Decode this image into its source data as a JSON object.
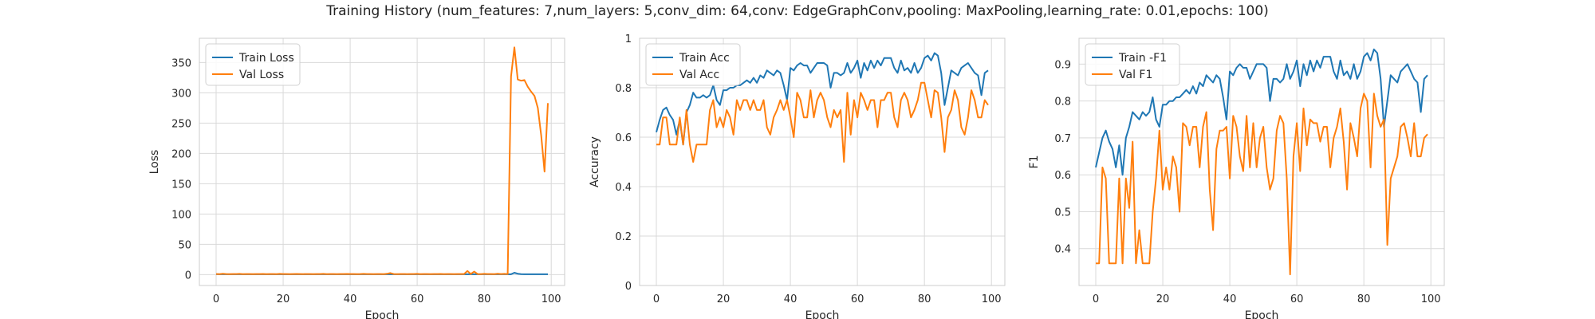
{
  "title": "Training History (num_features: 7,num_layers: 5,conv_dim: 64,conv: EdgeGraphConv,pooling: MaxPooling,learning_rate: 0.01,epochs: 100)",
  "colors": {
    "train": "#1f77b4",
    "val": "#ff7f0e",
    "grid": "#d9d9d9",
    "spine": "#cccccc"
  },
  "chart_data": [
    {
      "type": "line",
      "xlabel": "Epoch",
      "ylabel": "Loss",
      "xlim": [
        -5,
        104
      ],
      "ylim": [
        -18,
        390
      ],
      "xticks": [
        0,
        20,
        40,
        60,
        80,
        100
      ],
      "yticks": [
        0,
        50,
        100,
        150,
        200,
        250,
        300,
        350
      ],
      "legend": "top-left",
      "grid": true,
      "series": [
        {
          "name": "Train Loss",
          "color_key": "train",
          "values": [
            0.7,
            0.6,
            0.6,
            0.6,
            0.6,
            0.6,
            0.6,
            0.6,
            0.6,
            0.6,
            0.6,
            0.6,
            0.6,
            0.6,
            0.5,
            0.5,
            0.5,
            0.5,
            0.5,
            0.5,
            0.5,
            0.5,
            0.5,
            0.5,
            0.5,
            0.5,
            0.5,
            0.5,
            0.5,
            0.5,
            0.5,
            0.5,
            0.5,
            0.5,
            0.5,
            0.5,
            0.5,
            0.5,
            0.5,
            0.5,
            0.5,
            0.5,
            0.5,
            0.5,
            0.5,
            0.5,
            0.5,
            0.5,
            0.5,
            0.5,
            0.5,
            0.5,
            0.5,
            0.5,
            0.5,
            0.5,
            0.5,
            0.5,
            0.5,
            0.5,
            0.5,
            0.5,
            0.5,
            0.5,
            0.5,
            0.5,
            0.5,
            0.5,
            0.5,
            0.5,
            0.5,
            0.5,
            0.5,
            0.5,
            0.5,
            0.5,
            0.5,
            0.5,
            0.5,
            0.5,
            0.5,
            0.5,
            0.5,
            0.5,
            0.5,
            0.5,
            0.5,
            0.5,
            0.5,
            3.0,
            1.5,
            0.8,
            0.6,
            0.5,
            0.5,
            0.5,
            0.5,
            0.5,
            0.5,
            0.5
          ]
        },
        {
          "name": "Val Loss",
          "color_key": "val",
          "values": [
            1.0,
            0.8,
            1.5,
            0.9,
            0.8,
            1.0,
            0.9,
            1.2,
            0.8,
            1.0,
            0.9,
            0.8,
            1.0,
            0.9,
            1.1,
            0.8,
            1.0,
            0.9,
            0.8,
            1.2,
            1.0,
            0.9,
            0.8,
            1.0,
            1.1,
            0.9,
            0.8,
            1.0,
            0.9,
            0.8,
            1.0,
            0.9,
            1.2,
            0.8,
            1.0,
            0.9,
            0.8,
            1.0,
            0.9,
            1.1,
            1.0,
            0.9,
            0.8,
            1.0,
            1.2,
            0.9,
            1.0,
            0.8,
            1.0,
            0.9,
            0.8,
            1.3,
            2.5,
            1.0,
            0.8,
            1.0,
            0.9,
            0.8,
            1.0,
            0.9,
            1.2,
            0.8,
            1.0,
            0.9,
            0.8,
            1.0,
            0.9,
            1.1,
            0.8,
            1.0,
            0.9,
            0.8,
            1.0,
            0.9,
            1.0,
            6.0,
            0.9,
            5.0,
            1.0,
            0.8,
            1.2,
            1.0,
            0.9,
            0.8,
            1.5,
            1.0,
            1.2,
            0.9,
            327,
            375,
            322,
            320,
            321,
            310,
            302,
            295,
            275,
            230,
            170,
            283
          ]
        }
      ]
    },
    {
      "type": "line",
      "xlabel": "Epoch",
      "ylabel": "Accuracy",
      "xlim": [
        -5,
        104
      ],
      "ylim": [
        0,
        1.0
      ],
      "xticks": [
        0,
        20,
        40,
        60,
        80,
        100
      ],
      "yticks": [
        0.0,
        0.2,
        0.4,
        0.6,
        0.8,
        1.0
      ],
      "legend": "top-left",
      "grid": true,
      "series": [
        {
          "name": "Train Acc",
          "color_key": "train",
          "values": [
            0.62,
            0.67,
            0.71,
            0.72,
            0.69,
            0.67,
            0.61,
            0.67,
            0.57,
            0.7,
            0.73,
            0.78,
            0.76,
            0.76,
            0.77,
            0.76,
            0.77,
            0.81,
            0.75,
            0.73,
            0.79,
            0.79,
            0.8,
            0.8,
            0.81,
            0.81,
            0.82,
            0.83,
            0.82,
            0.84,
            0.82,
            0.85,
            0.84,
            0.87,
            0.86,
            0.85,
            0.87,
            0.86,
            0.81,
            0.75,
            0.88,
            0.87,
            0.89,
            0.9,
            0.89,
            0.89,
            0.86,
            0.88,
            0.9,
            0.9,
            0.9,
            0.89,
            0.8,
            0.86,
            0.86,
            0.85,
            0.86,
            0.9,
            0.86,
            0.88,
            0.91,
            0.84,
            0.9,
            0.87,
            0.91,
            0.88,
            0.91,
            0.89,
            0.92,
            0.92,
            0.92,
            0.88,
            0.86,
            0.91,
            0.87,
            0.88,
            0.86,
            0.9,
            0.86,
            0.88,
            0.92,
            0.93,
            0.91,
            0.94,
            0.93,
            0.86,
            0.73,
            0.8,
            0.87,
            0.86,
            0.85,
            0.88,
            0.89,
            0.9,
            0.88,
            0.86,
            0.85,
            0.77,
            0.86,
            0.87
          ]
        },
        {
          "name": "Val Acc",
          "color_key": "val",
          "values": [
            0.57,
            0.57,
            0.68,
            0.68,
            0.57,
            0.57,
            0.57,
            0.68,
            0.57,
            0.71,
            0.57,
            0.5,
            0.57,
            0.57,
            0.57,
            0.57,
            0.71,
            0.75,
            0.64,
            0.68,
            0.64,
            0.71,
            0.68,
            0.61,
            0.75,
            0.71,
            0.75,
            0.75,
            0.71,
            0.75,
            0.71,
            0.71,
            0.75,
            0.64,
            0.61,
            0.68,
            0.71,
            0.75,
            0.71,
            0.75,
            0.68,
            0.6,
            0.78,
            0.75,
            0.68,
            0.68,
            0.79,
            0.68,
            0.75,
            0.78,
            0.75,
            0.68,
            0.64,
            0.71,
            0.68,
            0.71,
            0.5,
            0.78,
            0.61,
            0.75,
            0.68,
            0.78,
            0.75,
            0.71,
            0.75,
            0.75,
            0.64,
            0.75,
            0.75,
            0.78,
            0.78,
            0.68,
            0.64,
            0.75,
            0.78,
            0.75,
            0.68,
            0.71,
            0.75,
            0.82,
            0.82,
            0.75,
            0.68,
            0.79,
            0.78,
            0.68,
            0.54,
            0.68,
            0.71,
            0.79,
            0.75,
            0.64,
            0.61,
            0.68,
            0.79,
            0.75,
            0.68,
            0.68,
            0.75,
            0.73
          ]
        }
      ]
    },
    {
      "type": "line",
      "xlabel": "Epoch",
      "ylabel": "F1",
      "xlim": [
        -5,
        104
      ],
      "ylim": [
        0.3,
        0.97
      ],
      "xticks": [
        0,
        20,
        40,
        60,
        80,
        100
      ],
      "yticks": [
        0.4,
        0.5,
        0.6,
        0.7,
        0.8,
        0.9
      ],
      "legend": "top-left",
      "grid": true,
      "series": [
        {
          "name": "Train -F1",
          "color_key": "train",
          "values": [
            0.62,
            0.66,
            0.7,
            0.72,
            0.69,
            0.67,
            0.62,
            0.68,
            0.6,
            0.7,
            0.73,
            0.77,
            0.76,
            0.75,
            0.77,
            0.76,
            0.77,
            0.81,
            0.75,
            0.73,
            0.79,
            0.79,
            0.8,
            0.8,
            0.81,
            0.81,
            0.82,
            0.83,
            0.82,
            0.84,
            0.82,
            0.85,
            0.84,
            0.87,
            0.86,
            0.85,
            0.87,
            0.86,
            0.81,
            0.75,
            0.88,
            0.87,
            0.89,
            0.9,
            0.89,
            0.89,
            0.86,
            0.88,
            0.9,
            0.9,
            0.9,
            0.89,
            0.8,
            0.86,
            0.86,
            0.85,
            0.86,
            0.9,
            0.86,
            0.88,
            0.91,
            0.84,
            0.9,
            0.87,
            0.91,
            0.88,
            0.91,
            0.89,
            0.92,
            0.92,
            0.92,
            0.88,
            0.86,
            0.91,
            0.87,
            0.88,
            0.86,
            0.9,
            0.86,
            0.88,
            0.92,
            0.93,
            0.91,
            0.94,
            0.93,
            0.86,
            0.73,
            0.8,
            0.87,
            0.86,
            0.85,
            0.88,
            0.89,
            0.9,
            0.88,
            0.86,
            0.85,
            0.77,
            0.86,
            0.87
          ]
        },
        {
          "name": "Val F1",
          "color_key": "val",
          "values": [
            0.36,
            0.36,
            0.62,
            0.59,
            0.36,
            0.36,
            0.36,
            0.59,
            0.36,
            0.59,
            0.51,
            0.69,
            0.36,
            0.45,
            0.36,
            0.36,
            0.36,
            0.5,
            0.59,
            0.72,
            0.56,
            0.62,
            0.56,
            0.65,
            0.62,
            0.5,
            0.74,
            0.73,
            0.68,
            0.73,
            0.73,
            0.62,
            0.73,
            0.77,
            0.56,
            0.45,
            0.67,
            0.72,
            0.72,
            0.73,
            0.59,
            0.76,
            0.73,
            0.65,
            0.61,
            0.76,
            0.62,
            0.74,
            0.62,
            0.7,
            0.73,
            0.62,
            0.56,
            0.59,
            0.72,
            0.76,
            0.74,
            0.59,
            0.33,
            0.65,
            0.74,
            0.61,
            0.78,
            0.68,
            0.75,
            0.74,
            0.74,
            0.69,
            0.73,
            0.73,
            0.62,
            0.7,
            0.73,
            0.78,
            0.69,
            0.56,
            0.74,
            0.7,
            0.65,
            0.78,
            0.82,
            0.8,
            0.62,
            0.82,
            0.76,
            0.73,
            0.75,
            0.41,
            0.59,
            0.62,
            0.65,
            0.73,
            0.74,
            0.7,
            0.65,
            0.74,
            0.65,
            0.65,
            0.7,
            0.71
          ]
        }
      ]
    }
  ]
}
